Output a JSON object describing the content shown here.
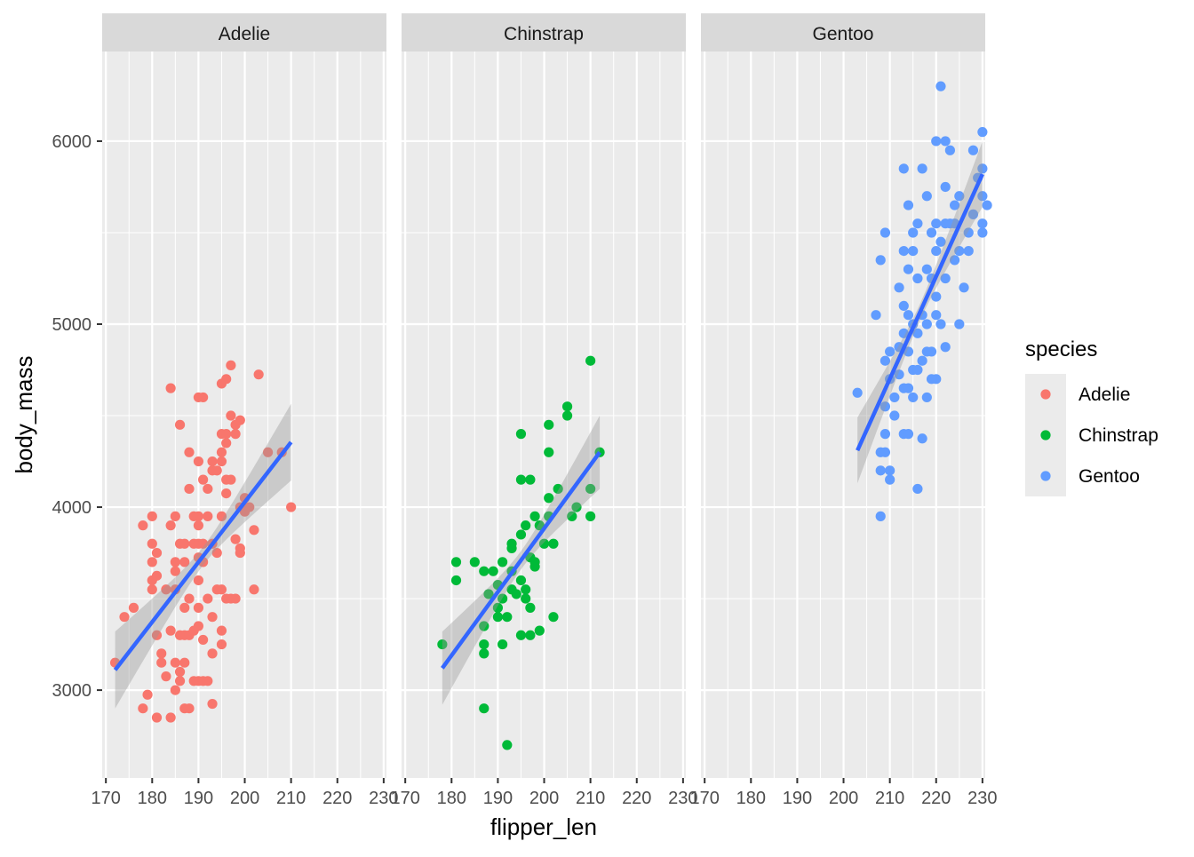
{
  "chart_data": {
    "type": "scatter",
    "facet_by": "species",
    "xlabel": "flipper_len",
    "ylabel": "body_mass",
    "xlim": [
      169.2,
      230.6
    ],
    "ylim": [
      2520,
      6490
    ],
    "x_ticks": [
      170,
      180,
      190,
      200,
      210,
      220,
      230
    ],
    "y_ticks": [
      3000,
      4000,
      5000,
      6000
    ],
    "grid": true,
    "legend": {
      "title": "species",
      "placement": "right",
      "entries": [
        "Adelie",
        "Chinstrap",
        "Gentoo"
      ]
    },
    "colors": {
      "Adelie": "#F8766D",
      "Chinstrap": "#00BA38",
      "Gentoo": "#619CFF",
      "fit": "#3366FF",
      "ribbon": "#999999"
    },
    "panels": [
      {
        "name": "Adelie",
        "fit": {
          "x": [
            172,
            210
          ],
          "y": [
            3110,
            4355
          ],
          "se_mid": 50,
          "se_end": 210
        },
        "points": [
          [
            172,
            3150
          ],
          [
            174,
            3400
          ],
          [
            176,
            3450
          ],
          [
            178,
            3900
          ],
          [
            178,
            2900
          ],
          [
            179,
            2975
          ],
          [
            180,
            3950
          ],
          [
            180,
            3800
          ],
          [
            180,
            3700
          ],
          [
            180,
            3600
          ],
          [
            180,
            3550
          ],
          [
            181,
            3625
          ],
          [
            181,
            3750
          ],
          [
            181,
            3300
          ],
          [
            181,
            2850
          ],
          [
            182,
            3200
          ],
          [
            182,
            3150
          ],
          [
            183,
            3075
          ],
          [
            183,
            3550
          ],
          [
            184,
            3900
          ],
          [
            184,
            4650
          ],
          [
            184,
            3325
          ],
          [
            184,
            2850
          ],
          [
            185,
            3950
          ],
          [
            185,
            3700
          ],
          [
            185,
            3650
          ],
          [
            185,
            3550
          ],
          [
            185,
            3150
          ],
          [
            185,
            3000
          ],
          [
            186,
            4450
          ],
          [
            186,
            3800
          ],
          [
            186,
            3100
          ],
          [
            186,
            3050
          ],
          [
            186,
            3300
          ],
          [
            187,
            3800
          ],
          [
            187,
            3700
          ],
          [
            187,
            3450
          ],
          [
            187,
            3300
          ],
          [
            187,
            3150
          ],
          [
            187,
            2900
          ],
          [
            188,
            4300
          ],
          [
            188,
            4100
          ],
          [
            188,
            3500
          ],
          [
            188,
            3300
          ],
          [
            188,
            2900
          ],
          [
            189,
            3950
          ],
          [
            189,
            3800
          ],
          [
            189,
            3325
          ],
          [
            189,
            3050
          ],
          [
            190,
            4600
          ],
          [
            190,
            4250
          ],
          [
            190,
            3950
          ],
          [
            190,
            3900
          ],
          [
            190,
            3800
          ],
          [
            190,
            3725
          ],
          [
            190,
            3600
          ],
          [
            190,
            3450
          ],
          [
            190,
            3350
          ],
          [
            190,
            3050
          ],
          [
            191,
            4600
          ],
          [
            191,
            4150
          ],
          [
            191,
            3800
          ],
          [
            191,
            3700
          ],
          [
            191,
            3275
          ],
          [
            191,
            3050
          ],
          [
            192,
            4100
          ],
          [
            192,
            3950
          ],
          [
            192,
            3500
          ],
          [
            192,
            3050
          ],
          [
            193,
            4250
          ],
          [
            193,
            4200
          ],
          [
            193,
            3800
          ],
          [
            193,
            3400
          ],
          [
            193,
            3200
          ],
          [
            193,
            2925
          ],
          [
            194,
            4200
          ],
          [
            194,
            3750
          ],
          [
            194,
            3550
          ],
          [
            195,
            4675
          ],
          [
            195,
            4400
          ],
          [
            195,
            4300
          ],
          [
            195,
            4250
          ],
          [
            195,
            3950
          ],
          [
            195,
            3550
          ],
          [
            195,
            3325
          ],
          [
            195,
            3250
          ],
          [
            196,
            4700
          ],
          [
            196,
            4400
          ],
          [
            196,
            4350
          ],
          [
            196,
            4150
          ],
          [
            196,
            4075
          ],
          [
            196,
            3500
          ],
          [
            197,
            4775
          ],
          [
            197,
            4500
          ],
          [
            197,
            4150
          ],
          [
            197,
            3500
          ],
          [
            198,
            4450
          ],
          [
            198,
            4400
          ],
          [
            198,
            3825
          ],
          [
            198,
            3500
          ],
          [
            199,
            4475
          ],
          [
            199,
            4000
          ],
          [
            199,
            3775
          ],
          [
            199,
            3750
          ],
          [
            200,
            4050
          ],
          [
            200,
            3975
          ],
          [
            201,
            4000
          ],
          [
            202,
            3875
          ],
          [
            202,
            3550
          ],
          [
            203,
            4725
          ],
          [
            205,
            4300
          ],
          [
            208,
            4300
          ],
          [
            210,
            4000
          ]
        ]
      },
      {
        "name": "Chinstrap",
        "fit": {
          "x": [
            178,
            212
          ],
          "y": [
            3120,
            4300
          ],
          "se_mid": 50,
          "se_end": 200
        },
        "points": [
          [
            178,
            3250
          ],
          [
            181,
            3700
          ],
          [
            181,
            3600
          ],
          [
            185,
            3700
          ],
          [
            187,
            3650
          ],
          [
            187,
            3350
          ],
          [
            187,
            3250
          ],
          [
            187,
            3200
          ],
          [
            187,
            2900
          ],
          [
            188,
            3525
          ],
          [
            189,
            3650
          ],
          [
            190,
            3575
          ],
          [
            190,
            3450
          ],
          [
            190,
            3400
          ],
          [
            191,
            3700
          ],
          [
            191,
            3500
          ],
          [
            191,
            3250
          ],
          [
            192,
            2700
          ],
          [
            192,
            3400
          ],
          [
            193,
            3800
          ],
          [
            193,
            3775
          ],
          [
            193,
            3650
          ],
          [
            193,
            3550
          ],
          [
            194,
            3525
          ],
          [
            195,
            4400
          ],
          [
            195,
            4150
          ],
          [
            195,
            3850
          ],
          [
            195,
            3600
          ],
          [
            195,
            3300
          ],
          [
            196,
            3900
          ],
          [
            196,
            3550
          ],
          [
            196,
            3500
          ],
          [
            197,
            4150
          ],
          [
            197,
            3725
          ],
          [
            197,
            3450
          ],
          [
            197,
            3300
          ],
          [
            198,
            3950
          ],
          [
            198,
            3700
          ],
          [
            198,
            3675
          ],
          [
            199,
            3325
          ],
          [
            199,
            3900
          ],
          [
            200,
            3800
          ],
          [
            201,
            4450
          ],
          [
            201,
            4300
          ],
          [
            201,
            4050
          ],
          [
            201,
            3950
          ],
          [
            202,
            3400
          ],
          [
            202,
            3800
          ],
          [
            203,
            4100
          ],
          [
            205,
            4550
          ],
          [
            205,
            4500
          ],
          [
            206,
            3950
          ],
          [
            207,
            4000
          ],
          [
            210,
            4800
          ],
          [
            210,
            4100
          ],
          [
            210,
            3950
          ],
          [
            212,
            4300
          ]
        ]
      },
      {
        "name": "Gentoo",
        "fit": {
          "x": [
            203,
            230
          ],
          "y": [
            4310,
            5820
          ],
          "se_mid": 45,
          "se_end": 180
        },
        "points": [
          [
            203,
            4625
          ],
          [
            207,
            5050
          ],
          [
            208,
            5350
          ],
          [
            208,
            4300
          ],
          [
            208,
            4200
          ],
          [
            208,
            3950
          ],
          [
            209,
            5500
          ],
          [
            209,
            4800
          ],
          [
            209,
            4550
          ],
          [
            209,
            4400
          ],
          [
            209,
            4300
          ],
          [
            210,
            4850
          ],
          [
            210,
            4700
          ],
          [
            210,
            4200
          ],
          [
            210,
            4150
          ],
          [
            211,
            4500
          ],
          [
            211,
            4600
          ],
          [
            212,
            5200
          ],
          [
            212,
            4875
          ],
          [
            212,
            4725
          ],
          [
            213,
            5850
          ],
          [
            213,
            5400
          ],
          [
            213,
            5100
          ],
          [
            213,
            4950
          ],
          [
            213,
            4650
          ],
          [
            213,
            4400
          ],
          [
            214,
            5650
          ],
          [
            214,
            5300
          ],
          [
            214,
            5050
          ],
          [
            214,
            4850
          ],
          [
            214,
            4650
          ],
          [
            214,
            4400
          ],
          [
            215,
            5400
          ],
          [
            215,
            5500
          ],
          [
            215,
            5000
          ],
          [
            215,
            4750
          ],
          [
            215,
            4600
          ],
          [
            216,
            5550
          ],
          [
            216,
            5250
          ],
          [
            216,
            4950
          ],
          [
            216,
            4750
          ],
          [
            216,
            4100
          ],
          [
            217,
            5850
          ],
          [
            217,
            5050
          ],
          [
            217,
            4800
          ],
          [
            217,
            4375
          ],
          [
            218,
            5700
          ],
          [
            218,
            5300
          ],
          [
            218,
            5000
          ],
          [
            218,
            4600
          ],
          [
            218,
            4850
          ],
          [
            219,
            5500
          ],
          [
            219,
            5250
          ],
          [
            219,
            4700
          ],
          [
            219,
            4850
          ],
          [
            220,
            6000
          ],
          [
            220,
            5550
          ],
          [
            220,
            5400
          ],
          [
            220,
            5150
          ],
          [
            220,
            5050
          ],
          [
            220,
            4700
          ],
          [
            221,
            6300
          ],
          [
            221,
            5450
          ],
          [
            221,
            5000
          ],
          [
            222,
            6000
          ],
          [
            222,
            5750
          ],
          [
            222,
            5550
          ],
          [
            222,
            5250
          ],
          [
            222,
            4875
          ],
          [
            223,
            5950
          ],
          [
            223,
            5550
          ],
          [
            224,
            5650
          ],
          [
            224,
            5550
          ],
          [
            224,
            5350
          ],
          [
            225,
            5700
          ],
          [
            225,
            5400
          ],
          [
            225,
            5000
          ],
          [
            226,
            5200
          ],
          [
            227,
            5500
          ],
          [
            227,
            5400
          ],
          [
            228,
            5950
          ],
          [
            228,
            5600
          ],
          [
            229,
            5800
          ],
          [
            230,
            6050
          ],
          [
            230,
            5850
          ],
          [
            230,
            5700
          ],
          [
            230,
            5550
          ],
          [
            230,
            5500
          ],
          [
            231,
            5650
          ]
        ]
      }
    ]
  }
}
